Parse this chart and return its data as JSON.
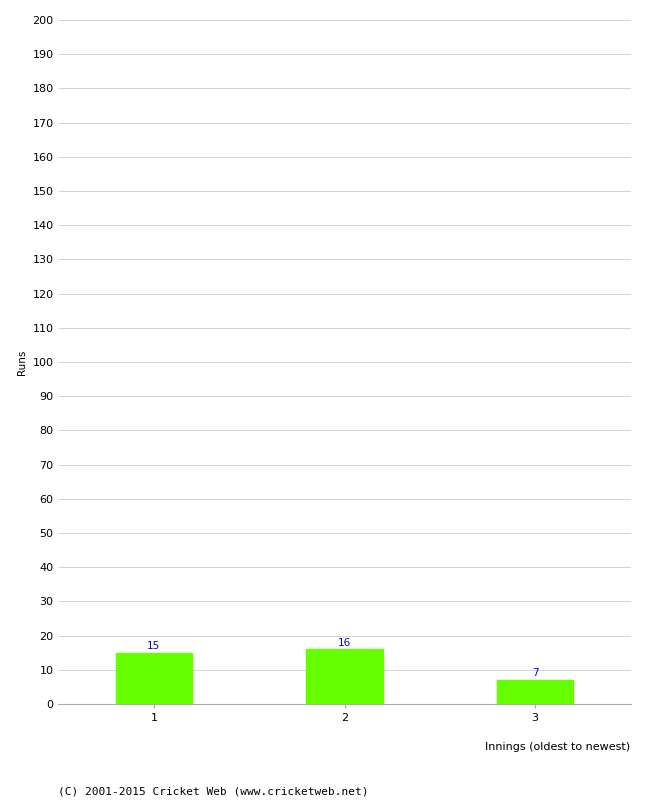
{
  "categories": [
    "1",
    "2",
    "3"
  ],
  "values": [
    15,
    16,
    7
  ],
  "bar_color": "#66ff00",
  "bar_edge_color": "#66ff00",
  "label_color": "#0000cc",
  "xlabel": "Innings (oldest to newest)",
  "ylabel": "Runs",
  "ylim": [
    0,
    200
  ],
  "ytick_step": 10,
  "background_color": "#ffffff",
  "grid_color": "#cccccc",
  "footer_text": "(C) 2001-2015 Cricket Web (www.cricketweb.net)",
  "label_fontsize": 7.5,
  "axis_fontsize": 8,
  "footer_fontsize": 8,
  "ylabel_fontsize": 7.5
}
